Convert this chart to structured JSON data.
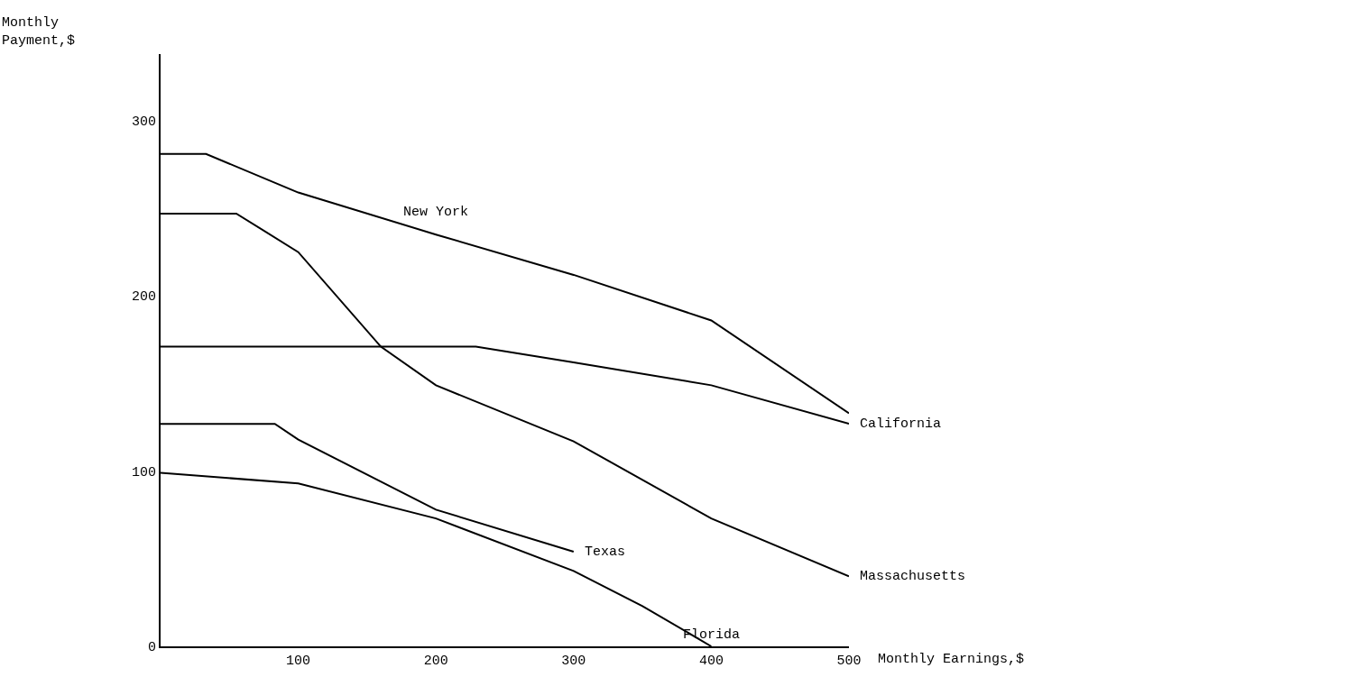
{
  "chart_data": {
    "type": "line",
    "xlabel": "Monthly Earnings,$",
    "ylabel": "Monthly Payment,$",
    "xlim": [
      0,
      500
    ],
    "ylim": [
      0,
      338
    ],
    "xticks": [
      100,
      200,
      300,
      400,
      500
    ],
    "yticks": [
      0,
      100,
      200,
      300
    ],
    "grid": false,
    "legend": false,
    "marker": "none",
    "line_style": "solid",
    "series": [
      {
        "name": "New York",
        "color": "#000000",
        "x": [
          0,
          33,
          100,
          200,
          300,
          400,
          500
        ],
        "values": [
          281,
          281,
          259,
          235,
          212,
          186,
          133
        ]
      },
      {
        "name": "California",
        "color": "#000000",
        "x": [
          0,
          229,
          300,
          400,
          500
        ],
        "values": [
          171,
          171,
          162,
          149,
          127
        ]
      },
      {
        "name": "Massachusetts",
        "color": "#000000",
        "x": [
          0,
          55,
          100,
          160,
          200,
          300,
          400,
          500
        ],
        "values": [
          247,
          247,
          225,
          171,
          149,
          117,
          73,
          40
        ]
      },
      {
        "name": "Texas",
        "color": "#000000",
        "x": [
          0,
          83,
          100,
          200,
          300
        ],
        "values": [
          127,
          127,
          118,
          78,
          54
        ]
      },
      {
        "name": "Florida",
        "color": "#000000",
        "x": [
          0,
          100,
          200,
          300,
          350,
          400
        ],
        "values": [
          99,
          93,
          73,
          43,
          23,
          0
        ]
      }
    ]
  }
}
